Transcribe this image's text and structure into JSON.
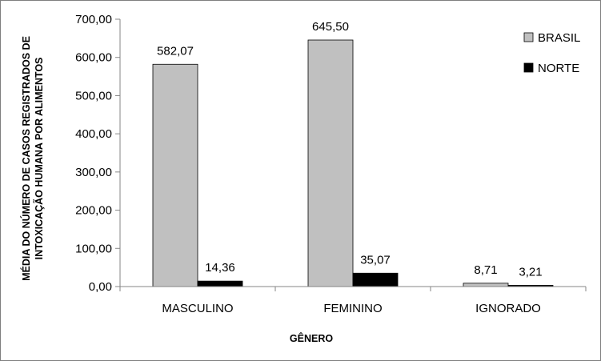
{
  "chart_data": {
    "type": "bar",
    "title": "",
    "categories": [
      "MASCULINO",
      "FEMININO",
      "IGNORADO"
    ],
    "series": [
      {
        "name": "BRASIL",
        "values": [
          582.07,
          645.5,
          8.71
        ],
        "labels": [
          "582,07",
          "645,50",
          "8,71"
        ],
        "color": "#c0c0c0"
      },
      {
        "name": "NORTE",
        "values": [
          14.36,
          35.07,
          3.21
        ],
        "labels": [
          "14,36",
          "35,07",
          "3,21"
        ],
        "color": "#000000"
      }
    ],
    "xlabel": "GÊNERO",
    "ylabel": [
      "MÉDIA DO NÚMERO DE CASOS REGISTRADOS DE",
      "INTOXICAÇÃO HUMANA POR ALIMENTOS"
    ],
    "ylim": [
      0,
      700
    ],
    "yticks": [
      0,
      100,
      200,
      300,
      400,
      500,
      600,
      700
    ],
    "ytick_labels": [
      "0,00",
      "100,00",
      "200,00",
      "300,00",
      "400,00",
      "500,00",
      "600,00",
      "700,00"
    ],
    "grid": false,
    "legend_position": "top-right"
  }
}
